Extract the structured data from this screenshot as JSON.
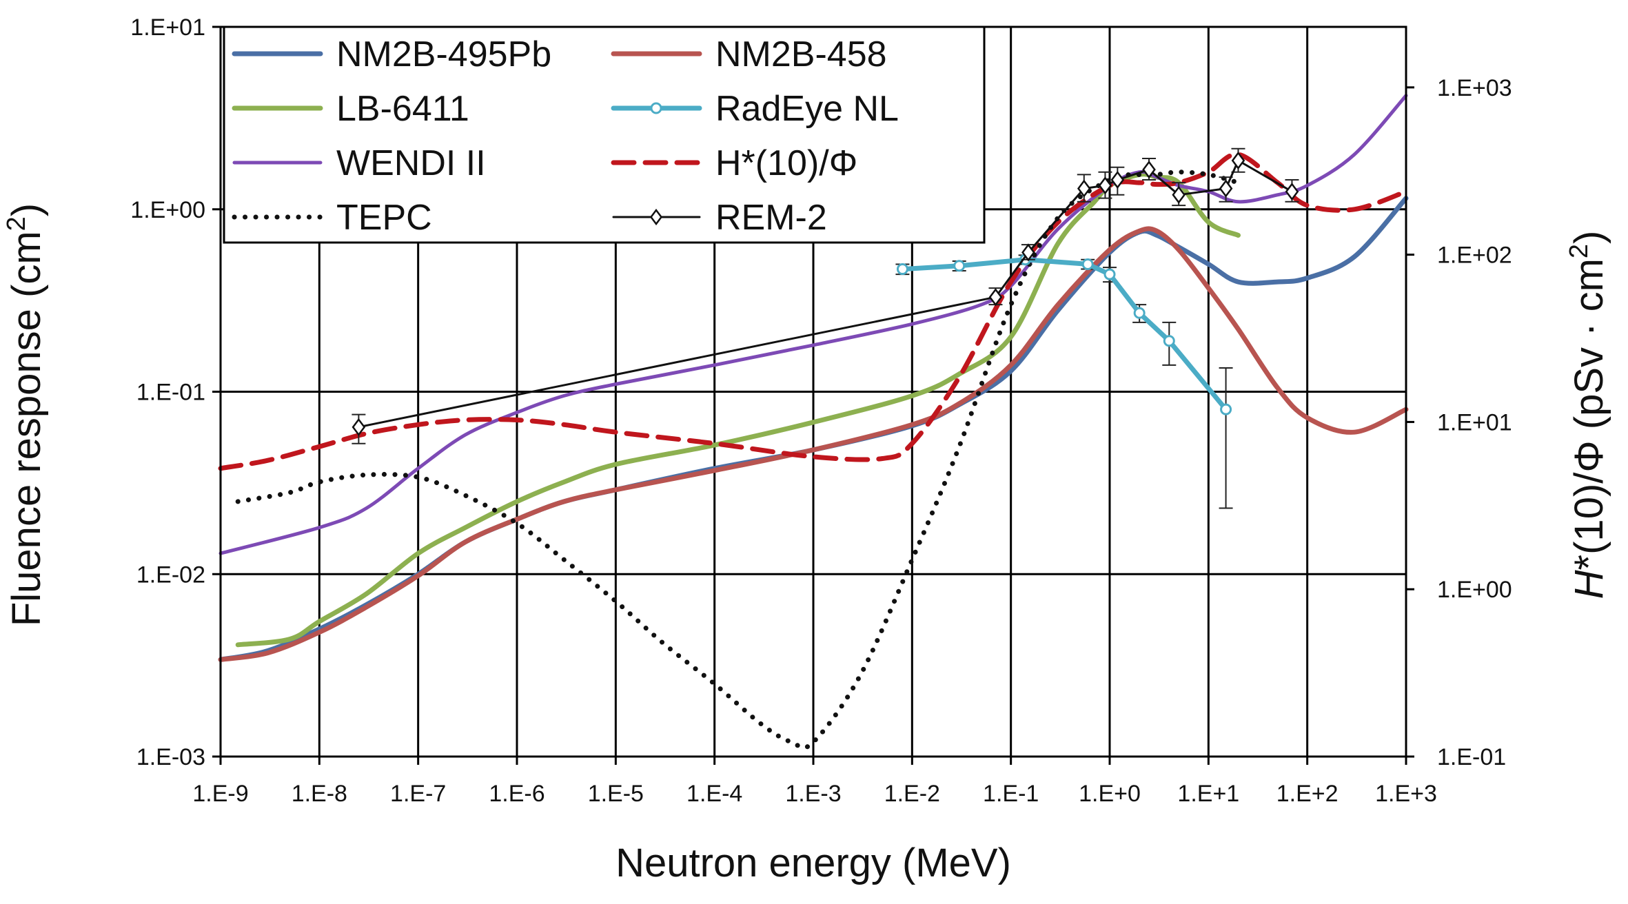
{
  "chart_data": {
    "type": "line",
    "title": "",
    "xlabel": "Neutron energy (MeV)",
    "ylabel": "Fluence response (cm",
    "ylabel_sup": "2",
    "ylabel_end": ")",
    "y2label_italic": "H",
    "y2label": "*(10)/Φ (pSv · cm",
    "y2label_sup": "2",
    "y2label_end": ")",
    "x_scale": "log",
    "y_scale": "log",
    "xlim": [
      1e-09,
      1000
    ],
    "ylim": [
      0.001,
      10
    ],
    "y2lim": [
      0.1,
      2300
    ],
    "grid": true,
    "legend_position": "top-left",
    "x_ticks": [
      "1.E-9",
      "1.E-8",
      "1.E-7",
      "1.E-6",
      "1.E-5",
      "1.E-4",
      "1.E-3",
      "1.E-2",
      "1.E-1",
      "1.E+0",
      "1.E+1",
      "1.E+2",
      "1.E+3"
    ],
    "y_ticks": [
      {
        "value": 0.001,
        "label": "1.E-03"
      },
      {
        "value": 0.01,
        "label": "1.E-02"
      },
      {
        "value": 0.1,
        "label": "1.E-01"
      },
      {
        "value": 1,
        "label": "1.E+00"
      },
      {
        "value": 10,
        "label": "1.E+01"
      }
    ],
    "y2_ticks": [
      {
        "value": 0.1,
        "label": "1.E-01"
      },
      {
        "value": 1,
        "label": "1.E+00"
      },
      {
        "value": 10,
        "label": "1.E+01"
      },
      {
        "value": 100,
        "label": "1.E+02"
      },
      {
        "value": 1000,
        "label": "1.E+03"
      }
    ],
    "series": [
      {
        "name": "NM2B-495Pb",
        "color": "#4a6fa5",
        "style": "solid",
        "width": 7,
        "points": [
          [
            1e-09,
            0.0034
          ],
          [
            3e-09,
            0.0038
          ],
          [
            1e-08,
            0.005
          ],
          [
            3e-08,
            0.0068
          ],
          [
            1e-07,
            0.01
          ],
          [
            3e-07,
            0.015
          ],
          [
            1e-06,
            0.02
          ],
          [
            3e-06,
            0.025
          ],
          [
            1e-05,
            0.029
          ],
          [
            0.0001,
            0.038
          ],
          [
            0.001,
            0.048
          ],
          [
            0.01,
            0.065
          ],
          [
            0.03,
            0.085
          ],
          [
            0.1,
            0.13
          ],
          [
            0.3,
            0.28
          ],
          [
            1,
            0.58
          ],
          [
            2,
            0.75
          ],
          [
            3,
            0.72
          ],
          [
            5,
            0.62
          ],
          [
            10,
            0.5
          ],
          [
            20,
            0.4
          ],
          [
            50,
            0.4
          ],
          [
            100,
            0.42
          ],
          [
            300,
            0.55
          ],
          [
            1000,
            1.15
          ]
        ]
      },
      {
        "name": "NM2B-458",
        "color": "#b85450",
        "style": "solid",
        "width": 7,
        "points": [
          [
            1e-09,
            0.0034
          ],
          [
            3e-09,
            0.0037
          ],
          [
            1e-08,
            0.0048
          ],
          [
            3e-08,
            0.0066
          ],
          [
            1e-07,
            0.0098
          ],
          [
            3e-07,
            0.015
          ],
          [
            1e-06,
            0.02
          ],
          [
            3e-06,
            0.025
          ],
          [
            1e-05,
            0.029
          ],
          [
            0.0001,
            0.037
          ],
          [
            0.001,
            0.048
          ],
          [
            0.01,
            0.066
          ],
          [
            0.03,
            0.086
          ],
          [
            0.1,
            0.14
          ],
          [
            0.3,
            0.3
          ],
          [
            1,
            0.6
          ],
          [
            2,
            0.76
          ],
          [
            3,
            0.76
          ],
          [
            5,
            0.6
          ],
          [
            10,
            0.37
          ],
          [
            20,
            0.22
          ],
          [
            50,
            0.105
          ],
          [
            100,
            0.072
          ],
          [
            300,
            0.06
          ],
          [
            1000,
            0.08
          ]
        ]
      },
      {
        "name": "LB-6411",
        "color": "#8db050",
        "style": "solid",
        "width": 7,
        "points": [
          [
            1.5e-09,
            0.0041
          ],
          [
            5e-09,
            0.0044
          ],
          [
            1e-08,
            0.0055
          ],
          [
            3e-08,
            0.0078
          ],
          [
            1e-07,
            0.013
          ],
          [
            3e-07,
            0.018
          ],
          [
            1e-06,
            0.025
          ],
          [
            3e-06,
            0.032
          ],
          [
            1e-05,
            0.04
          ],
          [
            0.0001,
            0.051
          ],
          [
            0.001,
            0.068
          ],
          [
            0.01,
            0.095
          ],
          [
            0.03,
            0.125
          ],
          [
            0.1,
            0.2
          ],
          [
            0.3,
            0.65
          ],
          [
            0.7,
            1.1
          ],
          [
            1,
            1.35
          ],
          [
            2,
            1.55
          ],
          [
            3,
            1.5
          ],
          [
            5,
            1.4
          ],
          [
            10,
            0.85
          ],
          [
            20,
            0.72
          ]
        ]
      },
      {
        "name": "WENDI II",
        "color": "#7d4ab5",
        "style": "solid",
        "width": 5,
        "points": [
          [
            1e-09,
            0.013
          ],
          [
            1e-08,
            0.018
          ],
          [
            3e-08,
            0.023
          ],
          [
            1e-07,
            0.038
          ],
          [
            3e-07,
            0.058
          ],
          [
            1e-06,
            0.077
          ],
          [
            3e-06,
            0.095
          ],
          [
            1e-05,
            0.11
          ],
          [
            0.0001,
            0.14
          ],
          [
            0.001,
            0.18
          ],
          [
            0.01,
            0.235
          ],
          [
            0.05,
            0.3
          ],
          [
            0.1,
            0.38
          ],
          [
            0.3,
            0.78
          ],
          [
            1,
            1.35
          ],
          [
            2,
            1.6
          ],
          [
            3,
            1.5
          ],
          [
            5,
            1.35
          ],
          [
            10,
            1.25
          ],
          [
            20,
            1.1
          ],
          [
            50,
            1.2
          ],
          [
            100,
            1.35
          ],
          [
            300,
            2.0
          ],
          [
            1000,
            4.2
          ]
        ]
      },
      {
        "name": "H*(10)/Φ",
        "color": "#c0161d",
        "style": "dashed",
        "width": 7,
        "points": [
          [
            1e-09,
            0.038
          ],
          [
            3e-09,
            0.042
          ],
          [
            1e-08,
            0.05
          ],
          [
            3e-08,
            0.059
          ],
          [
            1e-07,
            0.066
          ],
          [
            3e-07,
            0.07
          ],
          [
            1e-06,
            0.07
          ],
          [
            3e-06,
            0.066
          ],
          [
            1e-05,
            0.06
          ],
          [
            0.0001,
            0.052
          ],
          [
            0.001,
            0.044
          ],
          [
            0.005,
            0.043
          ],
          [
            0.01,
            0.052
          ],
          [
            0.03,
            0.12
          ],
          [
            0.1,
            0.4
          ],
          [
            0.3,
            0.85
          ],
          [
            1,
            1.35
          ],
          [
            2,
            1.4
          ],
          [
            3,
            1.37
          ],
          [
            5,
            1.4
          ],
          [
            10,
            1.6
          ],
          [
            20,
            2.0
          ],
          [
            50,
            1.4
          ],
          [
            100,
            1.05
          ],
          [
            300,
            1.0
          ],
          [
            1000,
            1.25
          ]
        ]
      },
      {
        "name": "TEPC",
        "color": "#111111",
        "style": "dotted",
        "width": 7,
        "points": [
          [
            1.5e-09,
            0.025
          ],
          [
            5e-09,
            0.028
          ],
          [
            1e-08,
            0.032
          ],
          [
            3e-08,
            0.035
          ],
          [
            1e-07,
            0.034
          ],
          [
            3e-07,
            0.027
          ],
          [
            1e-06,
            0.019
          ],
          [
            3e-06,
            0.012
          ],
          [
            1e-05,
            0.0071
          ],
          [
            3e-05,
            0.0042
          ],
          [
            0.0001,
            0.0025
          ],
          [
            0.0003,
            0.0015
          ],
          [
            0.0006,
            0.0012
          ],
          [
            0.001,
            0.0012
          ],
          [
            0.003,
            0.0028
          ],
          [
            0.01,
            0.012
          ],
          [
            0.03,
            0.05
          ],
          [
            0.1,
            0.3
          ],
          [
            0.3,
            0.9
          ],
          [
            1,
            1.45
          ],
          [
            2,
            1.55
          ],
          [
            3,
            1.55
          ],
          [
            5,
            1.6
          ],
          [
            10,
            1.55
          ],
          [
            20,
            1.4
          ]
        ]
      },
      {
        "name": "RadEye NL",
        "color": "#4bacc6",
        "style": "solid",
        "width": 7,
        "marker": "circle",
        "points": [
          [
            0.008,
            0.47
          ],
          [
            0.03,
            0.49
          ],
          [
            0.14,
            0.53
          ],
          [
            0.6,
            0.5
          ],
          [
            1,
            0.44
          ],
          [
            2,
            0.27
          ],
          [
            4,
            0.19
          ],
          [
            15,
            0.08
          ]
        ],
        "err_low": [
          0.44,
          0.46,
          0.5,
          0.47,
          0.4,
          0.24,
          0.14,
          0.023
        ],
        "err_high": [
          0.5,
          0.52,
          0.56,
          0.53,
          0.48,
          0.3,
          0.24,
          0.135
        ]
      },
      {
        "name": "REM-2",
        "color": "#111111",
        "style": "solid",
        "width": 3,
        "marker": "diamond",
        "points": [
          [
            2.5e-08,
            0.064
          ],
          [
            0.07,
            0.33
          ],
          [
            0.15,
            0.58
          ],
          [
            0.55,
            1.3
          ],
          [
            0.9,
            1.35
          ],
          [
            1.2,
            1.45
          ],
          [
            2.5,
            1.65
          ],
          [
            5,
            1.2
          ],
          [
            15,
            1.3
          ],
          [
            20,
            1.85
          ],
          [
            70,
            1.25
          ]
        ],
        "err_low": [
          0.052,
          0.3,
          0.53,
          1.1,
          1.15,
          1.2,
          1.45,
          1.05,
          1.1,
          1.6,
          1.1
        ],
        "err_high": [
          0.075,
          0.37,
          0.64,
          1.55,
          1.6,
          1.7,
          1.9,
          1.4,
          1.5,
          2.15,
          1.45
        ]
      }
    ]
  }
}
